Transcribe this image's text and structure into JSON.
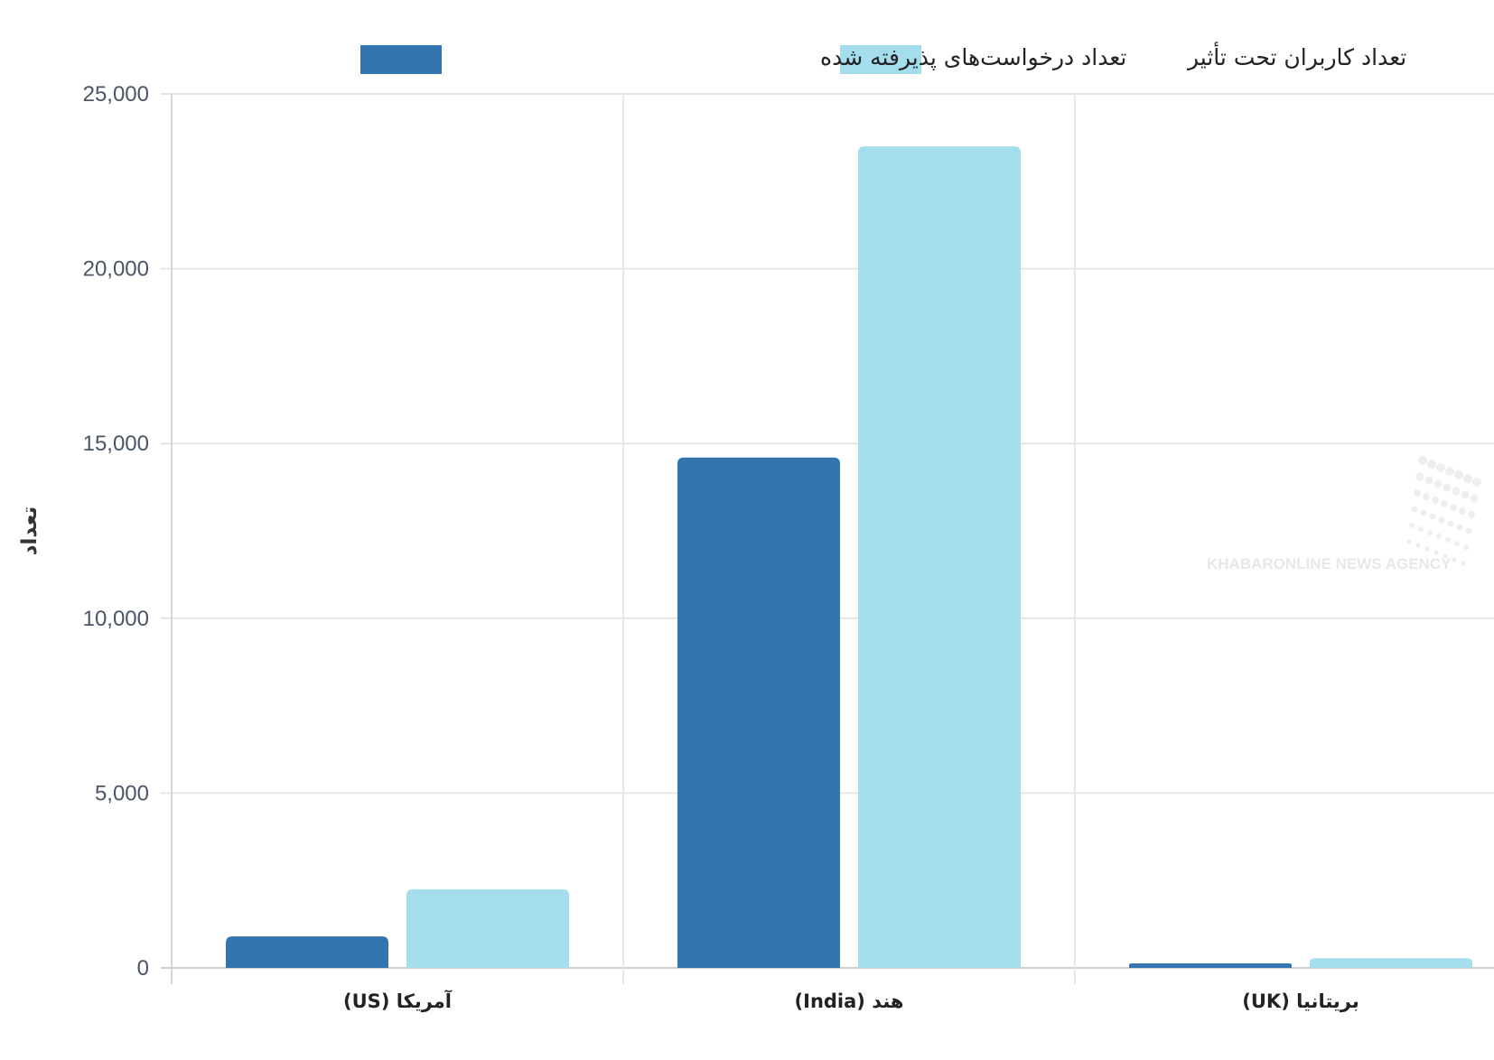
{
  "chart_data": {
    "type": "bar",
    "categories": [
      "آمریکا (US)",
      "هند (India)",
      "بریتانیا (UK)"
    ],
    "series": [
      {
        "name": "تعداد درخواست‌های پذیرفته شده",
        "color": "#3475b0",
        "values": [
          900,
          14600,
          130
        ]
      },
      {
        "name": "تعداد کاربران تحت تأثیر",
        "color": "#a4ddec",
        "values": [
          2250,
          23500,
          275
        ]
      }
    ],
    "title": "",
    "xlabel": "",
    "ylabel": "تعداد",
    "ylim": [
      0,
      25000
    ],
    "yticks": [
      "0",
      "5,000",
      "10,000",
      "15,000",
      "20,000",
      "25,000"
    ],
    "grid": true,
    "legend_position": "top"
  },
  "watermark": {
    "text": "KHABARONLINE NEWS AGENCY"
  }
}
